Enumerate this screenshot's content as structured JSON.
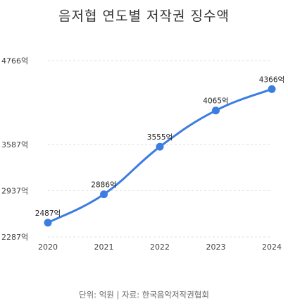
{
  "chart_data": {
    "type": "line",
    "title": "음저협 연도별 저작권 징수액",
    "footer": "단위: 억원 | 자료: 한국음악저작권협회",
    "categories": [
      "2020",
      "2021",
      "2022",
      "2023",
      "2024"
    ],
    "series": [
      {
        "values": [
          2487,
          2886,
          3555,
          4065,
          4366
        ]
      }
    ],
    "value_labels": [
      "2487억",
      "2886억",
      "3555억",
      "4065억",
      "4366억"
    ],
    "y_ticks": [
      2287,
      2937,
      3587,
      4766
    ],
    "y_tick_labels": [
      "2287억",
      "2937억",
      "3587억",
      "4766억"
    ],
    "ylim": [
      2287,
      4766
    ],
    "grid": true,
    "colors": {
      "line": "#3b7de0",
      "point": "#3b7de0"
    }
  }
}
